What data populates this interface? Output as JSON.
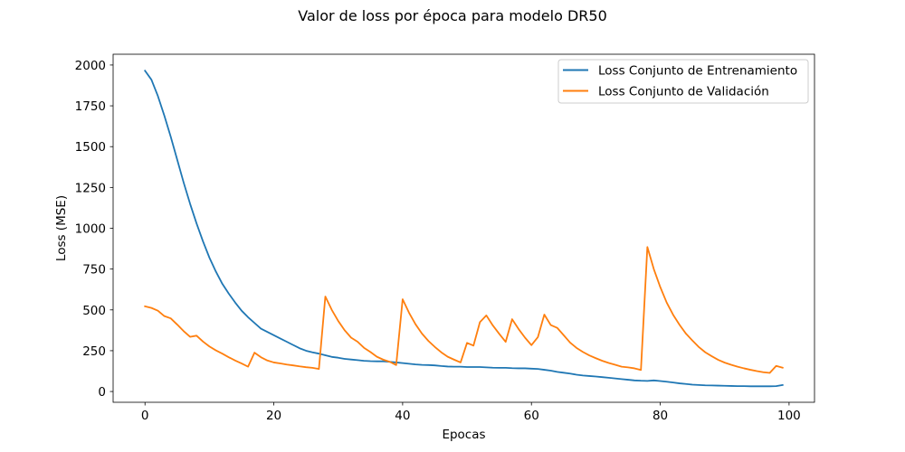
{
  "chart_data": {
    "type": "line",
    "title": "Valor de loss por época para modelo DR50",
    "xlabel": "Epocas",
    "ylabel": "Loss (MSE)",
    "xlim": [
      -4.95,
      103.95
    ],
    "ylim": [
      -66,
      2066
    ],
    "xticks": [
      0,
      20,
      40,
      60,
      80,
      100
    ],
    "xtick_labels": [
      "0",
      "20",
      "40",
      "60",
      "80",
      "100"
    ],
    "yticks": [
      0,
      250,
      500,
      750,
      1000,
      1250,
      1500,
      1750,
      2000
    ],
    "ytick_labels": [
      "0",
      "250",
      "500",
      "750",
      "1000",
      "1250",
      "1500",
      "1750",
      "2000"
    ],
    "grid": false,
    "legend_position": "upper right",
    "series": [
      {
        "name": "Loss Conjunto de Entrenamiento",
        "color": "#1f77b4",
        "x": [
          0,
          1,
          2,
          3,
          4,
          5,
          6,
          7,
          8,
          9,
          10,
          11,
          12,
          13,
          14,
          15,
          16,
          17,
          18,
          19,
          20,
          21,
          22,
          23,
          24,
          25,
          26,
          27,
          28,
          29,
          30,
          31,
          32,
          33,
          34,
          35,
          36,
          37,
          38,
          39,
          40,
          41,
          42,
          43,
          44,
          45,
          46,
          47,
          48,
          49,
          50,
          51,
          52,
          53,
          54,
          55,
          56,
          57,
          58,
          59,
          60,
          61,
          62,
          63,
          64,
          65,
          66,
          67,
          68,
          69,
          70,
          71,
          72,
          73,
          74,
          75,
          76,
          77,
          78,
          79,
          80,
          81,
          82,
          83,
          84,
          85,
          86,
          87,
          88,
          89,
          90,
          91,
          92,
          93,
          94,
          95,
          96,
          97,
          98,
          99
        ],
        "values": [
          1965,
          1910,
          1810,
          1690,
          1560,
          1420,
          1280,
          1150,
          1030,
          920,
          820,
          735,
          660,
          600,
          545,
          495,
          455,
          420,
          385,
          365,
          345,
          325,
          305,
          285,
          265,
          250,
          240,
          232,
          222,
          212,
          207,
          200,
          196,
          192,
          188,
          186,
          185,
          185,
          182,
          178,
          174,
          170,
          166,
          163,
          162,
          160,
          156,
          153,
          152,
          152,
          150,
          150,
          150,
          148,
          146,
          145,
          145,
          143,
          142,
          142,
          140,
          138,
          133,
          128,
          120,
          115,
          110,
          103,
          98,
          95,
          92,
          88,
          84,
          80,
          76,
          72,
          68,
          66,
          65,
          68,
          64,
          60,
          55,
          50,
          46,
          42,
          40,
          38,
          37,
          36,
          35,
          34,
          33,
          33,
          32,
          32,
          32,
          32,
          33,
          40
        ]
      },
      {
        "name": "Loss Conjunto de Validación",
        "color": "#ff7f0e",
        "x": [
          0,
          1,
          2,
          3,
          4,
          5,
          6,
          7,
          8,
          9,
          10,
          11,
          12,
          13,
          14,
          15,
          16,
          17,
          18,
          19,
          20,
          21,
          22,
          23,
          24,
          25,
          26,
          27,
          28,
          29,
          30,
          31,
          32,
          33,
          34,
          35,
          36,
          37,
          38,
          39,
          40,
          41,
          42,
          43,
          44,
          45,
          46,
          47,
          48,
          49,
          50,
          51,
          52,
          53,
          54,
          55,
          56,
          57,
          58,
          59,
          60,
          61,
          62,
          63,
          64,
          65,
          66,
          67,
          68,
          69,
          70,
          71,
          72,
          73,
          74,
          75,
          76,
          77,
          78,
          79,
          80,
          81,
          82,
          83,
          84,
          85,
          86,
          87,
          88,
          89,
          90,
          91,
          92,
          93,
          94,
          95,
          96,
          97,
          98,
          99
        ],
        "values": [
          522,
          512,
          495,
          462,
          448,
          410,
          370,
          335,
          342,
          306,
          276,
          252,
          232,
          210,
          190,
          172,
          152,
          238,
          210,
          190,
          178,
          172,
          165,
          160,
          154,
          149,
          145,
          138,
          582,
          500,
          432,
          375,
          330,
          305,
          268,
          242,
          213,
          195,
          182,
          162,
          565,
          482,
          412,
          355,
          310,
          273,
          240,
          213,
          195,
          178,
          298,
          281,
          425,
          466,
          405,
          353,
          304,
          443,
          383,
          330,
          284,
          333,
          471,
          407,
          390,
          345,
          300,
          267,
          242,
          221,
          204,
          188,
          175,
          164,
          152,
          148,
          142,
          132,
          885,
          750,
          640,
          545,
          470,
          408,
          354,
          312,
          272,
          240,
          216,
          194,
          177,
          164,
          152,
          142,
          133,
          125,
          118,
          114,
          157,
          146
        ]
      }
    ]
  }
}
